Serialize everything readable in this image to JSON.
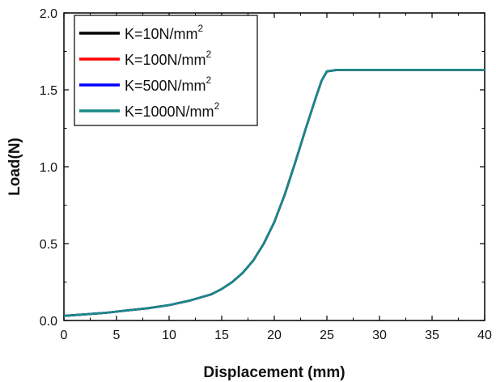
{
  "chart_data": {
    "type": "line",
    "title": "",
    "xlabel": "Displacement (mm)",
    "ylabel": "Load(N)",
    "xlim": [
      0,
      40
    ],
    "ylim": [
      0.0,
      2.0
    ],
    "xticks": [
      "0",
      "5",
      "10",
      "15",
      "20",
      "25",
      "30",
      "35",
      "40"
    ],
    "yticks": [
      "0.0",
      "0.5",
      "1.0",
      "1.5",
      "2.0"
    ],
    "grid": false,
    "legend_position": "top-left",
    "x": [
      0,
      2,
      4,
      6,
      8,
      10,
      12,
      14,
      15,
      16,
      17,
      18,
      19,
      20,
      21,
      22,
      23,
      24,
      24.5,
      25,
      26,
      28,
      30,
      32,
      34,
      36,
      38,
      40
    ],
    "series": [
      {
        "name": "K=10N/mm",
        "superscript": "2",
        "color": "#000000",
        "values": [
          0.03,
          0.04,
          0.05,
          0.065,
          0.08,
          0.1,
          0.13,
          0.17,
          0.205,
          0.25,
          0.31,
          0.39,
          0.5,
          0.64,
          0.82,
          1.03,
          1.25,
          1.46,
          1.56,
          1.62,
          1.63,
          1.63,
          1.63,
          1.63,
          1.63,
          1.63,
          1.63,
          1.63
        ]
      },
      {
        "name": "K=100N/mm",
        "superscript": "2",
        "color": "#ff0000",
        "values": [
          0.03,
          0.04,
          0.05,
          0.065,
          0.08,
          0.1,
          0.13,
          0.17,
          0.205,
          0.25,
          0.31,
          0.39,
          0.5,
          0.64,
          0.82,
          1.03,
          1.25,
          1.46,
          1.56,
          1.62,
          1.63,
          1.63,
          1.63,
          1.63,
          1.63,
          1.63,
          1.63,
          1.63
        ]
      },
      {
        "name": "K=500N/mm",
        "superscript": "2",
        "color": "#0000ff",
        "values": [
          0.03,
          0.04,
          0.05,
          0.065,
          0.08,
          0.1,
          0.13,
          0.17,
          0.205,
          0.25,
          0.31,
          0.39,
          0.5,
          0.64,
          0.82,
          1.03,
          1.25,
          1.46,
          1.56,
          1.62,
          1.63,
          1.63,
          1.63,
          1.63,
          1.63,
          1.63,
          1.63,
          1.63
        ]
      },
      {
        "name": "K=1000N/mm",
        "superscript": "2",
        "color": "#178a84",
        "values": [
          0.03,
          0.04,
          0.05,
          0.065,
          0.08,
          0.1,
          0.13,
          0.17,
          0.205,
          0.25,
          0.31,
          0.39,
          0.5,
          0.64,
          0.82,
          1.03,
          1.25,
          1.46,
          1.56,
          1.62,
          1.63,
          1.63,
          1.63,
          1.63,
          1.63,
          1.63,
          1.63,
          1.63
        ]
      }
    ]
  }
}
